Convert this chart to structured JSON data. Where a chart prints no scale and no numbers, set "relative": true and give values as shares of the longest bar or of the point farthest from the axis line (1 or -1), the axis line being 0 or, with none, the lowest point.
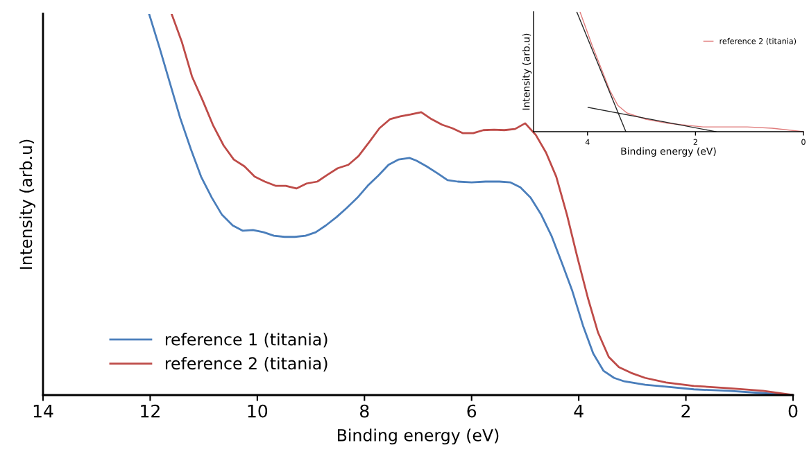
{
  "chart_data": [
    {
      "type": "line",
      "xlabel": "Binding energy (eV)",
      "ylabel": "Intensity (arb.u)",
      "relative": true,
      "xlim": [
        14,
        0
      ],
      "xticks": [
        14,
        12,
        10,
        8,
        6,
        4,
        2,
        0
      ],
      "tick_labels": "x",
      "legend": "bottom left",
      "grid": false,
      "series": [
        {
          "name": "reference 1 (titania)",
          "color": "#4a7ebb",
          "x": [
            12.02,
            11.82,
            11.63,
            11.44,
            11.24,
            11.05,
            10.85,
            10.66,
            10.46,
            10.27,
            10.08,
            9.88,
            9.69,
            9.49,
            9.3,
            9.1,
            8.91,
            8.72,
            8.52,
            8.33,
            8.13,
            7.94,
            7.74,
            7.55,
            7.36,
            7.16,
            7.03,
            6.84,
            6.64,
            6.45,
            6.26,
            6.0,
            5.74,
            5.48,
            5.28,
            5.09,
            4.9,
            4.7,
            4.51,
            4.31,
            4.12,
            3.92,
            3.73,
            3.54,
            3.34,
            3.15,
            2.76,
            2.37,
            1.85,
            1.2,
            0.56,
            0
          ],
          "values": [
            1.0,
            0.909,
            0.818,
            0.727,
            0.645,
            0.573,
            0.518,
            0.473,
            0.445,
            0.431,
            0.433,
            0.427,
            0.418,
            0.415,
            0.415,
            0.418,
            0.427,
            0.445,
            0.467,
            0.491,
            0.518,
            0.549,
            0.576,
            0.604,
            0.618,
            0.622,
            0.615,
            0.6,
            0.582,
            0.564,
            0.56,
            0.558,
            0.56,
            0.56,
            0.558,
            0.545,
            0.518,
            0.473,
            0.418,
            0.345,
            0.273,
            0.182,
            0.109,
            0.064,
            0.045,
            0.036,
            0.027,
            0.022,
            0.015,
            0.011,
            0.005,
            0
          ]
        },
        {
          "name": "reference 2 (titania)",
          "color": "#be4b48",
          "x": [
            11.6,
            11.41,
            11.22,
            11.02,
            10.83,
            10.63,
            10.44,
            10.24,
            10.05,
            9.86,
            9.66,
            9.47,
            9.27,
            9.08,
            8.88,
            8.69,
            8.5,
            8.3,
            8.11,
            7.91,
            7.72,
            7.52,
            7.33,
            7.14,
            6.94,
            6.75,
            6.55,
            6.36,
            6.16,
            5.97,
            5.78,
            5.58,
            5.39,
            5.19,
            5.0,
            4.8,
            4.61,
            4.42,
            4.22,
            4.03,
            3.83,
            3.64,
            3.44,
            3.25,
            3.02,
            2.76,
            2.37,
            1.85,
            1.2,
            0.56,
            0
          ],
          "values": [
            1.0,
            0.927,
            0.836,
            0.773,
            0.709,
            0.655,
            0.618,
            0.6,
            0.573,
            0.56,
            0.549,
            0.549,
            0.542,
            0.555,
            0.56,
            0.578,
            0.595,
            0.604,
            0.627,
            0.664,
            0.7,
            0.724,
            0.731,
            0.736,
            0.742,
            0.724,
            0.709,
            0.7,
            0.687,
            0.687,
            0.695,
            0.696,
            0.695,
            0.698,
            0.713,
            0.682,
            0.636,
            0.573,
            0.473,
            0.364,
            0.255,
            0.164,
            0.1,
            0.073,
            0.058,
            0.045,
            0.033,
            0.024,
            0.018,
            0.011,
            0
          ]
        }
      ]
    },
    {
      "type": "line",
      "xlabel": "Binding energy (eV)",
      "ylabel": "Intensity (arb.u)",
      "relative": true,
      "xlim": [
        5,
        0
      ],
      "xticks": [
        4,
        2,
        0
      ],
      "tick_labels": "x",
      "legend": "right",
      "grid": false,
      "series": [
        {
          "name": "reference 2 (titania)",
          "color": "#e07b7b",
          "x": [
            4.14,
            3.91,
            3.73,
            3.59,
            3.44,
            3.27,
            2.92,
            2.5,
            1.86,
            1.38,
            1.04,
            0.58,
            0
          ],
          "values": [
            1.0,
            0.714,
            0.509,
            0.347,
            0.22,
            0.156,
            0.104,
            0.069,
            0.04,
            0.04,
            0.04,
            0.029,
            0
          ]
        },
        {
          "color": "#262626",
          "x": [
            4.2,
            3.29
          ],
          "values": [
            1.0,
            0
          ]
        },
        {
          "color": "#262626",
          "x": [
            3.99,
            1.62
          ],
          "values": [
            0.202,
            0
          ]
        }
      ]
    }
  ]
}
